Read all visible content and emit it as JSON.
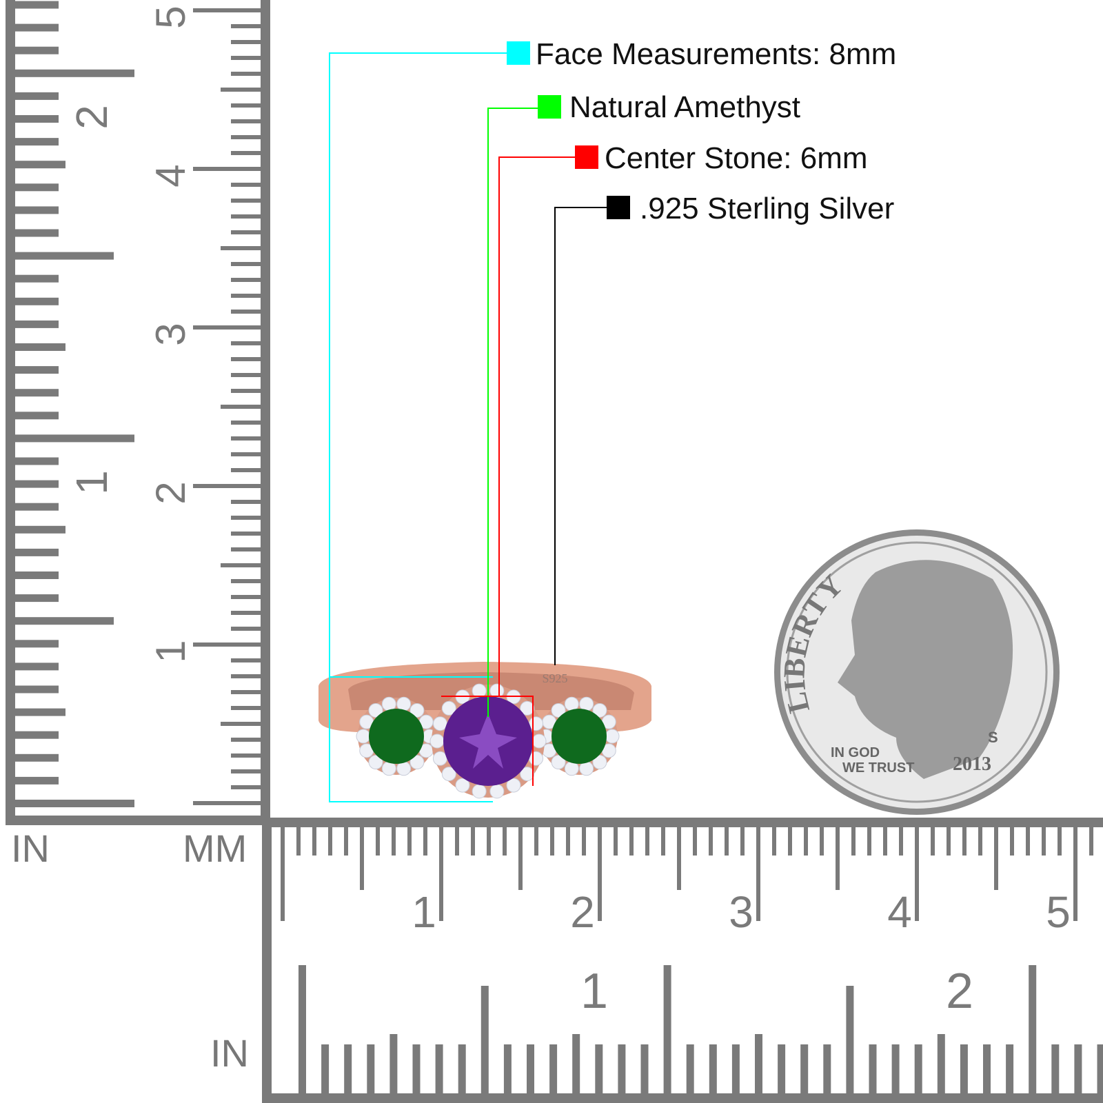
{
  "legend": [
    {
      "label": "Face Measurements: 8mm",
      "color": "#00ffff"
    },
    {
      "label": "Natural Amethyst",
      "color": "#00ff00"
    },
    {
      "label": "Center Stone: 6mm",
      "color": "#ff0000"
    },
    {
      "label": ".925 Sterling Silver",
      "color": "#000000"
    }
  ],
  "rulers": {
    "left_in_label": "IN",
    "left_mm_label": "MM",
    "bottom_in_label": "IN",
    "cm_labels": [
      "1",
      "2",
      "3",
      "4",
      "5"
    ],
    "in_labels": [
      "1",
      "2"
    ],
    "ruler_color": "#7a7a7a"
  },
  "ring": {
    "stamp": "S925",
    "metal_color": "#e3a48c",
    "center_stone_color": "#5b1f8f",
    "side_stone_color": "#0f6a1e"
  },
  "coin": {
    "liberty": "LIBERTY",
    "motto_1": "IN GOD",
    "motto_2": "WE TRUST",
    "year": "2013",
    "mint": "S"
  }
}
